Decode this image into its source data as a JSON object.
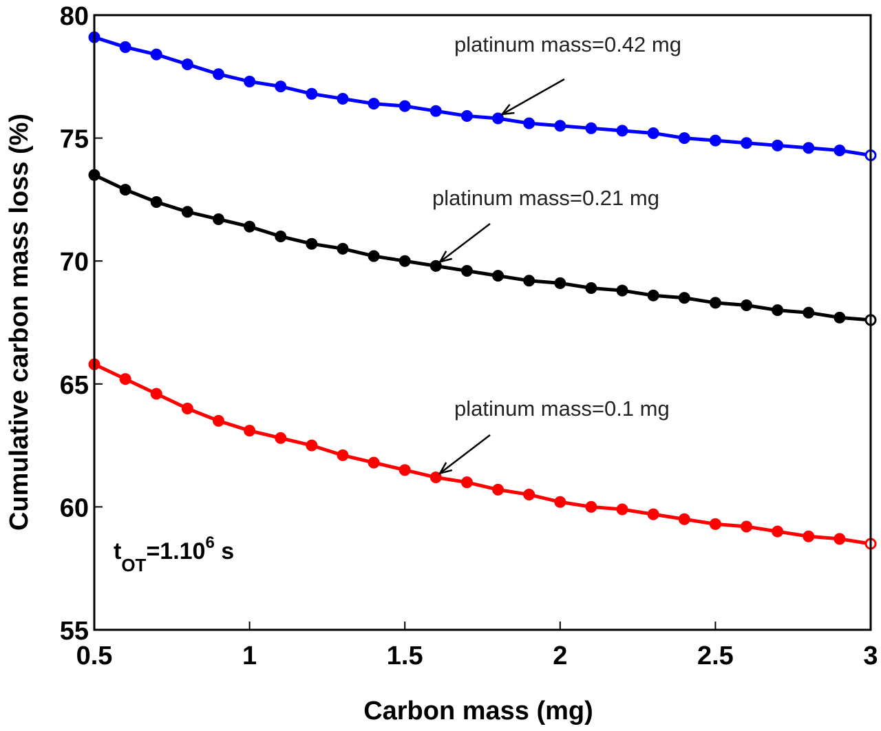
{
  "chart_data": {
    "type": "line",
    "xlabel": "Carbon mass (mg)",
    "ylabel": "Cumulative carbon mass loss (%)",
    "xlim": [
      0.5,
      3
    ],
    "ylim": [
      55,
      80
    ],
    "xticks": [
      "0.5",
      "1",
      "1.5",
      "2",
      "2.5",
      "3"
    ],
    "yticks": [
      "55",
      "60",
      "65",
      "70",
      "75",
      "80"
    ],
    "grid": false,
    "x": [
      0.5,
      0.6,
      0.7,
      0.8,
      0.9,
      1.0,
      1.1,
      1.2,
      1.3,
      1.4,
      1.5,
      1.6,
      1.7,
      1.8,
      1.9,
      2.0,
      2.1,
      2.2,
      2.3,
      2.4,
      2.5,
      2.6,
      2.7,
      2.8,
      2.9,
      3.0
    ],
    "series": [
      {
        "name": "platinum mass=0.42 mg",
        "color": "#0000ff",
        "values": [
          79.1,
          78.7,
          78.4,
          78.0,
          77.6,
          77.3,
          77.1,
          76.8,
          76.6,
          76.4,
          76.3,
          76.1,
          75.9,
          75.8,
          75.6,
          75.5,
          75.4,
          75.3,
          75.2,
          75.0,
          74.9,
          74.8,
          74.7,
          74.6,
          74.5,
          74.3
        ],
        "arrow_to": [
          1.8,
          75.8
        ]
      },
      {
        "name": "platinum mass=0.21 mg",
        "color": "#000000",
        "values": [
          73.5,
          72.9,
          72.4,
          72.0,
          71.7,
          71.4,
          71.0,
          70.7,
          70.5,
          70.2,
          70.0,
          69.8,
          69.6,
          69.4,
          69.2,
          69.1,
          68.9,
          68.8,
          68.6,
          68.5,
          68.3,
          68.2,
          68.0,
          67.9,
          67.7,
          67.6
        ],
        "arrow_to": [
          1.6,
          69.8
        ]
      },
      {
        "name": "platinum mass=0.1 mg",
        "color": "#ff0000",
        "values": [
          65.8,
          65.2,
          64.6,
          64.0,
          63.5,
          63.1,
          62.8,
          62.5,
          62.1,
          61.8,
          61.5,
          61.2,
          61.0,
          60.7,
          60.5,
          60.2,
          60.0,
          59.9,
          59.7,
          59.5,
          59.3,
          59.2,
          59.0,
          58.8,
          58.7,
          58.5
        ],
        "arrow_to": [
          1.6,
          61.2
        ]
      }
    ],
    "annotation": {
      "base": "t",
      "sub": "OT",
      "mid": "=1.10",
      "sup": "6",
      "tail": " s"
    }
  }
}
